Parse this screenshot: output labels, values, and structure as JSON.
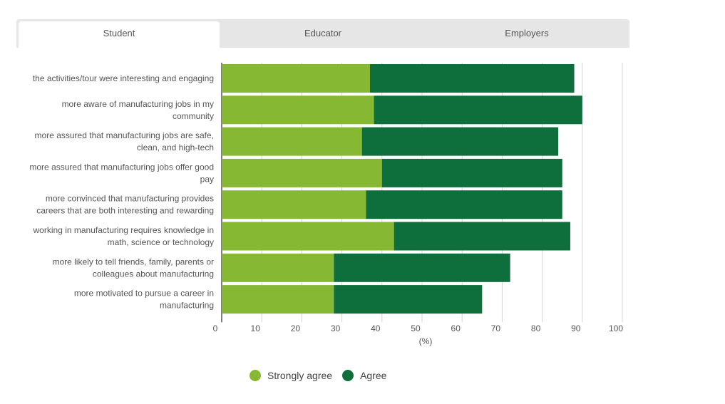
{
  "tabs": [
    {
      "label": "Student",
      "active": true
    },
    {
      "label": "Educator",
      "active": false
    },
    {
      "label": "Employers",
      "active": false
    }
  ],
  "colors": {
    "strongly_agree": "#86b833",
    "agree": "#0e6e3c",
    "grid": "#d4d4d4",
    "axis": "#555555"
  },
  "chart_data": {
    "type": "bar",
    "orientation": "horizontal",
    "stacked": true,
    "categories": [
      [
        "the activities/tour were interesting and engaging"
      ],
      [
        "more aware of manufacturing jobs in my",
        "community"
      ],
      [
        "more assured that manufacturing jobs are safe,",
        "clean, and high-tech"
      ],
      [
        "more assured that manufacturing jobs offer good",
        "pay"
      ],
      [
        "more convinced that manufacturing provides",
        "careers that are both interesting and rewarding"
      ],
      [
        "working in manufacturing requires knowledge in",
        "math, science or technology"
      ],
      [
        "more likely to tell friends, family, parents or",
        "colleagues about manufacturing"
      ],
      [
        "more motivated to pursue a career in",
        "manufacturing"
      ]
    ],
    "series": [
      {
        "name": "Strongly agree",
        "values": [
          37,
          38,
          35,
          40,
          36,
          43,
          28,
          28
        ]
      },
      {
        "name": "Agree",
        "values": [
          51,
          52,
          49,
          45,
          49,
          44,
          44,
          37
        ]
      }
    ],
    "xlabel": "(%)",
    "xlim": [
      0,
      100
    ],
    "xticks": [
      0,
      10,
      20,
      30,
      40,
      50,
      60,
      70,
      80,
      90,
      100
    ],
    "grid": true,
    "legend_position": "bottom"
  }
}
